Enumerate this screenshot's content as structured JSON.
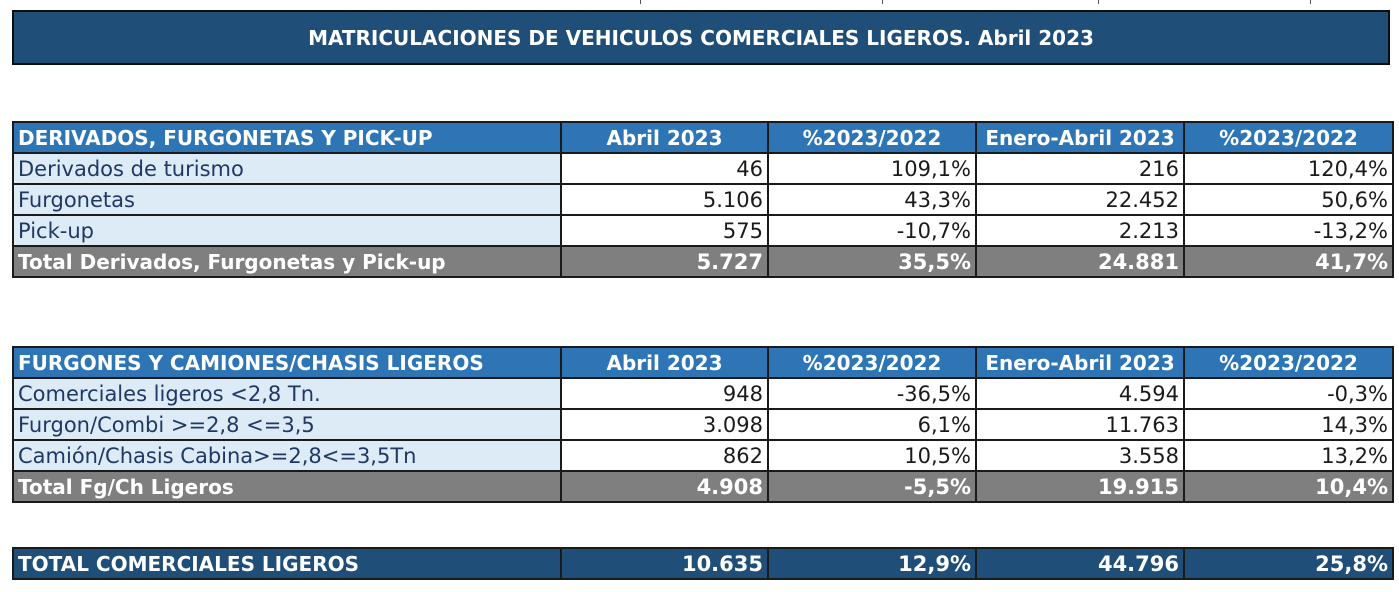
{
  "title": "MATRICULACIONES DE VEHICULOS COMERCIALES LIGEROS. Abril 2023",
  "colors": {
    "title_bg": "#1f4e79",
    "header_bg": "#2e75b6",
    "label_bg": "#ddebf7",
    "total_bg": "#7f7f7f"
  },
  "section1": {
    "header": [
      "DERIVADOS, FURGONETAS Y PICK-UP",
      "Abril 2023",
      "%2023/2022",
      "Enero-Abril 2023",
      "%2023/2022"
    ],
    "rows": [
      [
        "Derivados de turismo",
        "46",
        "109,1%",
        "216",
        "120,4%"
      ],
      [
        "Furgonetas",
        "5.106",
        "43,3%",
        "22.452",
        "50,6%"
      ],
      [
        "Pick-up",
        "575",
        "-10,7%",
        "2.213",
        "-13,2%"
      ]
    ],
    "total": [
      "Total Derivados, Furgonetas y Pick-up",
      "5.727",
      "35,5%",
      "24.881",
      "41,7%"
    ]
  },
  "section2": {
    "header": [
      "FURGONES Y CAMIONES/CHASIS LIGEROS",
      "Abril 2023",
      "%2023/2022",
      "Enero-Abril 2023",
      "%2023/2022"
    ],
    "rows": [
      [
        "Comerciales ligeros <2,8 Tn.",
        "948",
        "-36,5%",
        "4.594",
        "-0,3%"
      ],
      [
        "Furgon/Combi >=2,8 <=3,5",
        "3.098",
        "6,1%",
        "11.763",
        "14,3%"
      ],
      [
        "Camión/Chasis Cabina>=2,8<=3,5Tn",
        "862",
        "10,5%",
        "3.558",
        "13,2%"
      ]
    ],
    "total": [
      "Total Fg/Ch Ligeros",
      "4.908",
      "-5,5%",
      "19.915",
      "10,4%"
    ]
  },
  "grand_total": [
    "TOTAL COMERCIALES LIGEROS",
    "10.635",
    "12,9%",
    "44.796",
    "25,8%"
  ]
}
